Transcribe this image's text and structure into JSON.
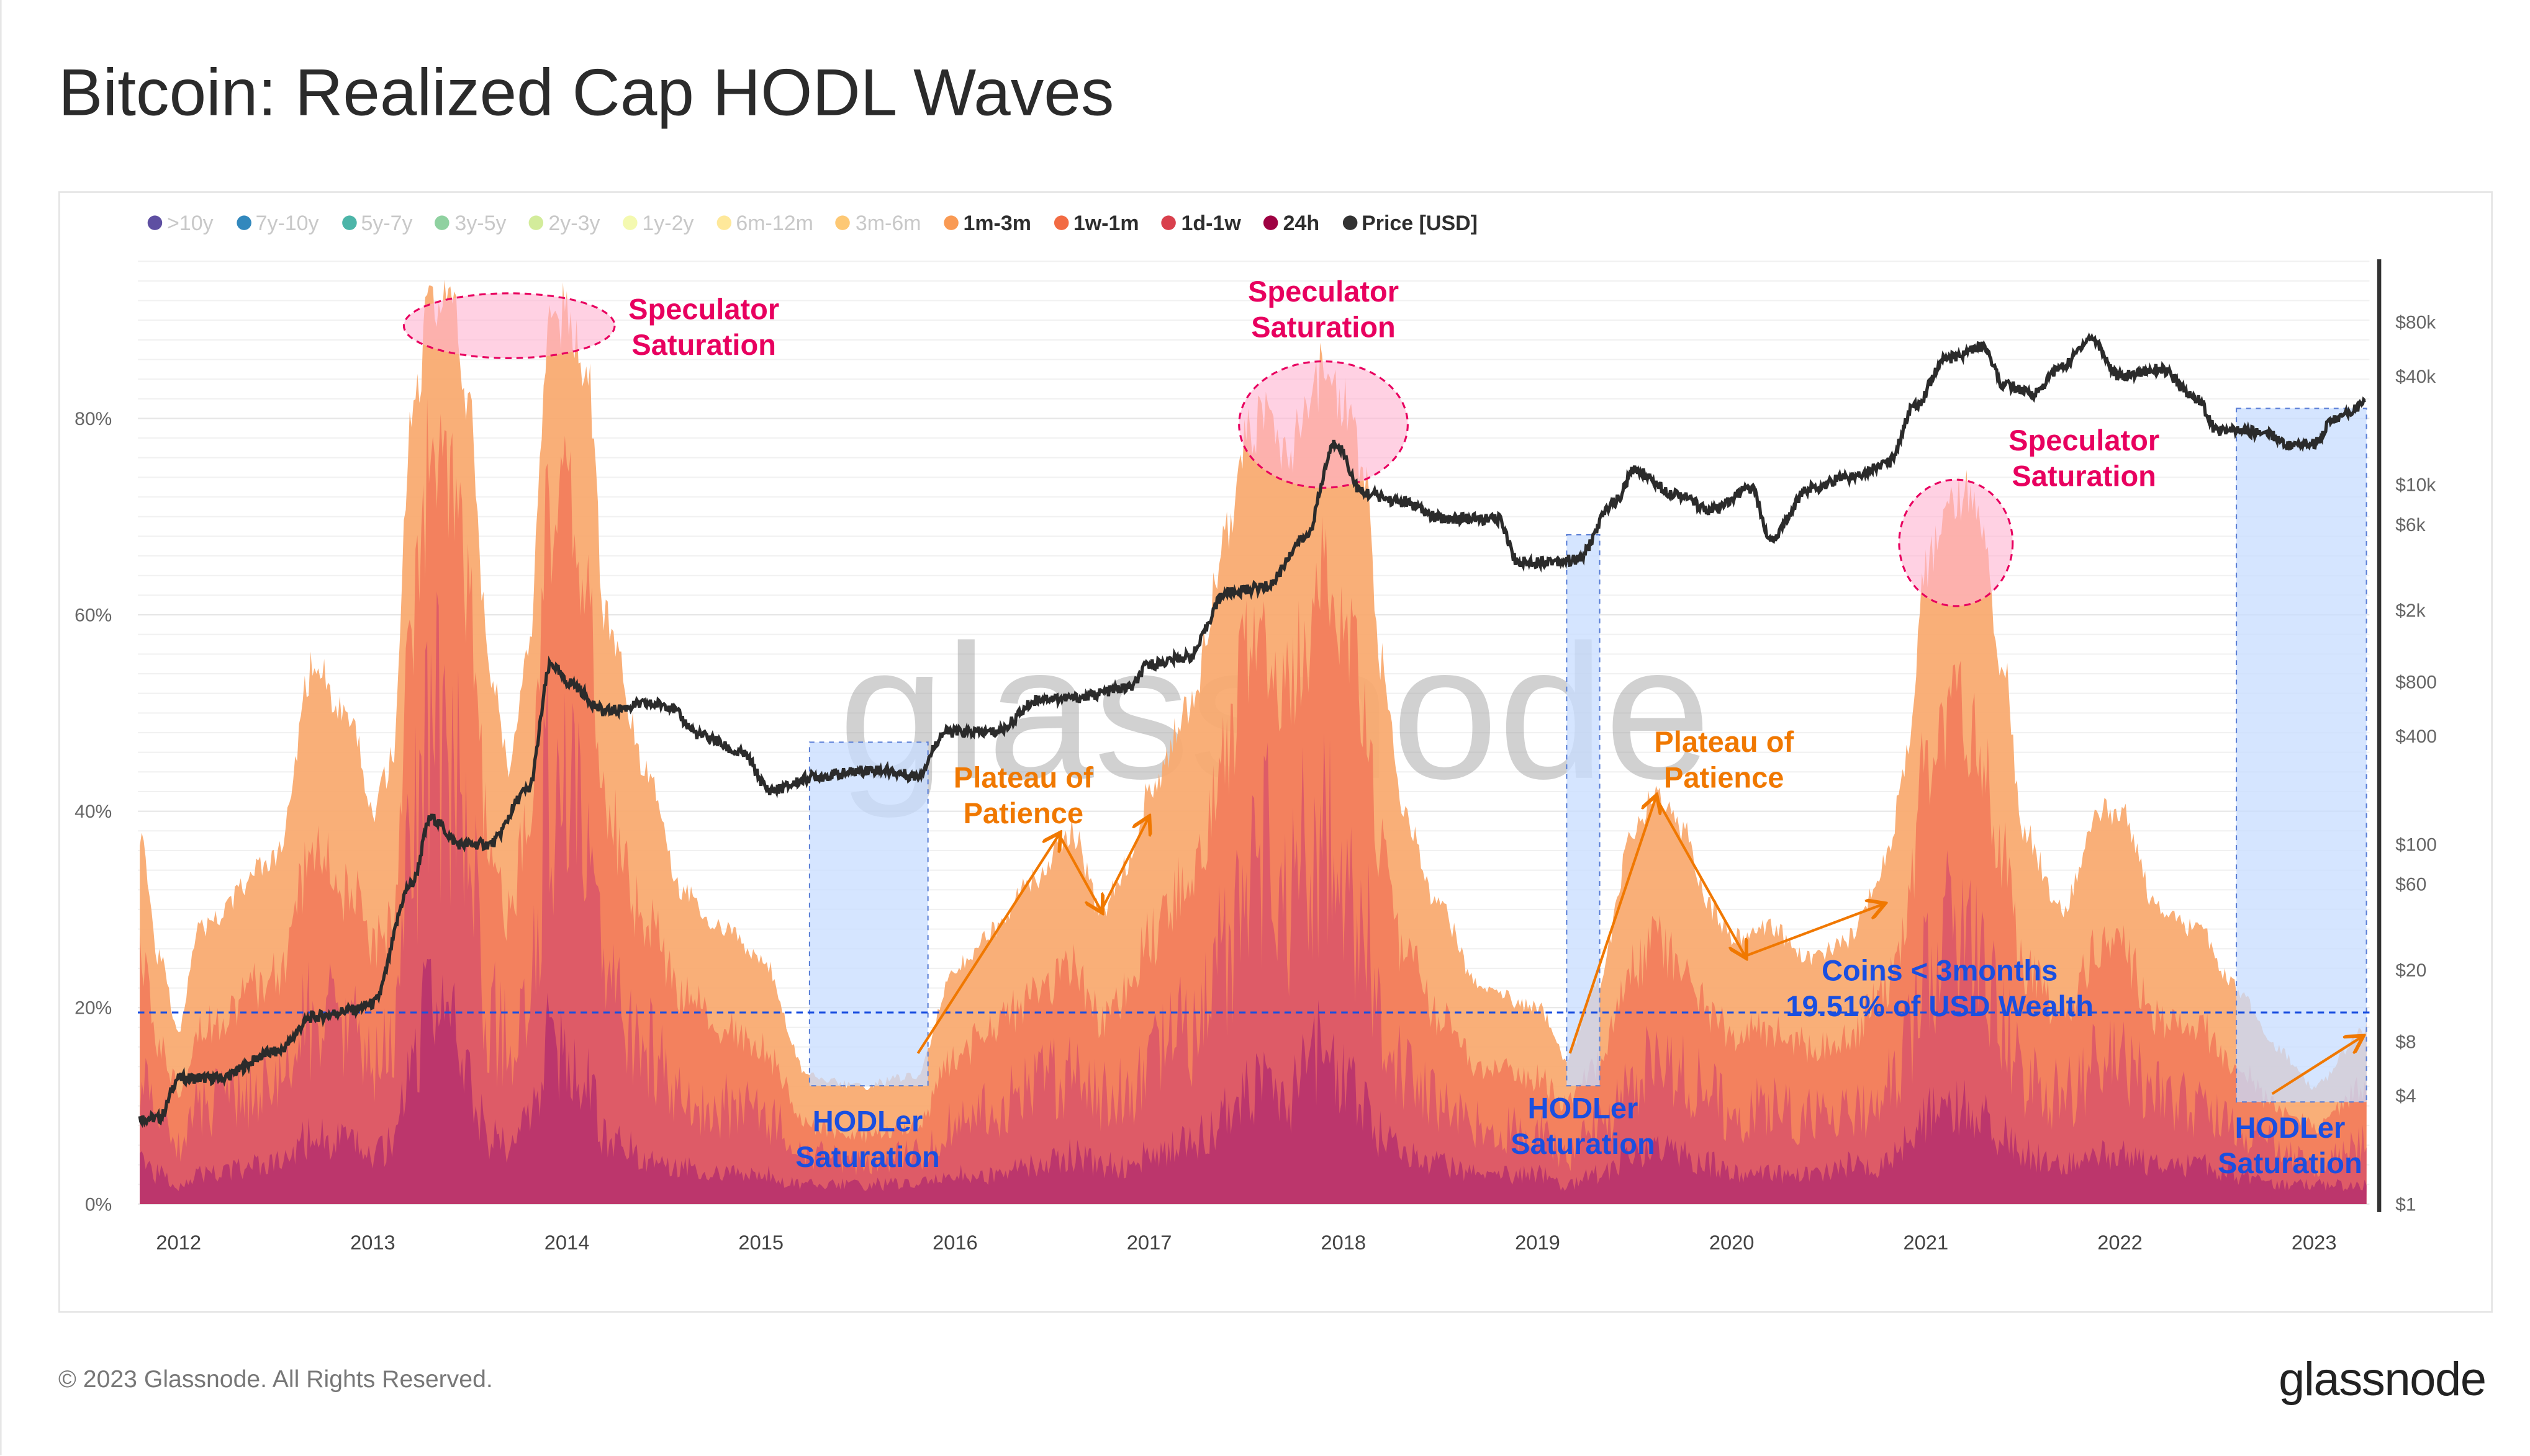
{
  "title": "Bitcoin: Realized Cap HODL Waves",
  "legend": [
    {
      "label": ">10y",
      "color": "#5e4fa2",
      "active": false
    },
    {
      "label": "7y-10y",
      "color": "#3288bd",
      "active": false
    },
    {
      "label": "5y-7y",
      "color": "#4cb5a8",
      "active": false
    },
    {
      "label": "3y-5y",
      "color": "#8fd1a0",
      "active": false
    },
    {
      "label": "2y-3y",
      "color": "#d3ec9b",
      "active": false
    },
    {
      "label": "1y-2y",
      "color": "#f4f9b0",
      "active": false
    },
    {
      "label": "6m-12m",
      "color": "#fee89a",
      "active": false
    },
    {
      "label": "3m-6m",
      "color": "#fdc874",
      "active": false
    },
    {
      "label": "1m-3m",
      "color": "#f99a54",
      "active": true
    },
    {
      "label": "1w-1m",
      "color": "#f26b43",
      "active": true
    },
    {
      "label": "1d-1w",
      "color": "#d9404d",
      "active": true
    },
    {
      "label": "24h",
      "color": "#9e0142",
      "active": true
    },
    {
      "label": "Price [USD]",
      "color": "#333333",
      "active": true
    }
  ],
  "footer": "© 2023 Glassnode. All Rights Reserved.",
  "logo": "glassnode",
  "watermark": "glassnode",
  "annotations": {
    "spec1": [
      "Speculator",
      "Saturation"
    ],
    "spec2": [
      "Speculator",
      "Saturation"
    ],
    "spec3": [
      "Speculator",
      "Saturation"
    ],
    "hodl1": [
      "HODLer",
      "Saturation"
    ],
    "hodl2": [
      "HODLer",
      "Saturation"
    ],
    "hodl3": [
      "HODLer",
      "Saturation"
    ],
    "plat1": [
      "Plateau of",
      "Patience"
    ],
    "plat2": [
      "Plateau of",
      "Patience"
    ],
    "coins": [
      "Coins < 3months",
      "19.51% of USD Wealth"
    ]
  },
  "chart_data": {
    "type": "area",
    "title": "Bitcoin: Realized Cap HODL Waves",
    "x_ticks": [
      "2012",
      "2013",
      "2014",
      "2015",
      "2016",
      "2017",
      "2018",
      "2019",
      "2020",
      "2021",
      "2022",
      "2023"
    ],
    "y_left_ticks": [
      "0%",
      "20%",
      "40%",
      "60%",
      "80%"
    ],
    "y_right_ticks": [
      "$1",
      "$4",
      "$8",
      "$20",
      "$60",
      "$100",
      "$400",
      "$800",
      "$2k",
      "$6k",
      "$10k",
      "$40k",
      "$80k"
    ],
    "y_right_values": [
      1,
      4,
      8,
      20,
      60,
      100,
      400,
      800,
      2000,
      6000,
      10000,
      40000,
      80000
    ],
    "y_right_scale": "log",
    "ylim_left": [
      0,
      96
    ],
    "grid": true,
    "legend_position": "top",
    "reference_line_pct": 19.51,
    "x": [
      2011.8,
      2011.9,
      2012.0,
      2012.1,
      2012.5,
      2012.7,
      2012.9,
      2013.0,
      2013.1,
      2013.2,
      2013.3,
      2013.4,
      2013.5,
      2013.6,
      2013.7,
      2013.8,
      2013.9,
      2014.0,
      2014.1,
      2014.2,
      2014.4,
      2014.6,
      2014.8,
      2015.0,
      2015.25,
      2015.5,
      2015.8,
      2016.0,
      2016.2,
      2016.4,
      2016.6,
      2016.75,
      2016.9,
      2017.0,
      2017.2,
      2017.4,
      2017.5,
      2017.6,
      2017.7,
      2017.8,
      2017.9,
      2018.0,
      2018.1,
      2018.2,
      2018.3,
      2018.5,
      2018.7,
      2019.0,
      2019.15,
      2019.3,
      2019.5,
      2019.6,
      2019.75,
      2019.9,
      2020.0,
      2020.2,
      2020.4,
      2020.6,
      2020.8,
      2020.9,
      2021.0,
      2021.15,
      2021.25,
      2021.4,
      2021.5,
      2021.7,
      2021.9,
      2022.0,
      2022.2,
      2022.4,
      2022.6,
      2022.8,
      2023.0,
      2023.27
    ],
    "series": [
      {
        "name": "1m-3m",
        "color": "#f9a86c",
        "values": [
          38,
          25,
          18,
          28,
          35,
          55,
          48,
          40,
          45,
          80,
          92,
          92,
          80,
          55,
          45,
          55,
          88,
          91,
          85,
          60,
          45,
          32,
          28,
          25,
          13,
          12,
          13,
          24,
          28,
          33,
          38,
          30,
          35,
          42,
          50,
          68,
          78,
          80,
          76,
          80,
          85,
          82,
          75,
          55,
          40,
          30,
          22,
          20,
          15,
          22,
          38,
          42,
          38,
          30,
          27,
          28,
          25,
          27,
          35,
          45,
          65,
          72,
          72,
          55,
          38,
          30,
          40,
          40,
          30,
          28,
          22,
          16,
          12,
          18
        ]
      },
      {
        "name": "1w-1m",
        "color": "#f27d5c",
        "values": [
          25,
          16,
          12,
          18,
          23,
          36,
          31,
          26,
          29,
          60,
          75,
          72,
          60,
          36,
          29,
          38,
          70,
          72,
          62,
          40,
          29,
          21,
          18,
          16,
          8,
          7,
          8,
          15,
          18,
          21,
          24,
          19,
          22,
          27,
          33,
          46,
          55,
          58,
          52,
          58,
          64,
          60,
          52,
          36,
          26,
          19,
          14,
          13,
          10,
          14,
          24,
          27,
          24,
          19,
          17,
          18,
          16,
          17,
          22,
          29,
          45,
          50,
          48,
          36,
          24,
          19,
          26,
          26,
          19,
          18,
          14,
          10,
          8,
          12
        ]
      },
      {
        "name": "1d-1w",
        "color": "#dc5868",
        "values": [
          13,
          9,
          6,
          10,
          12,
          19,
          17,
          14,
          16,
          35,
          48,
          45,
          35,
          19,
          16,
          19,
          40,
          40,
          35,
          21,
          16,
          11,
          10,
          9,
          5,
          4,
          5,
          8,
          10,
          12,
          13,
          11,
          12,
          15,
          18,
          26,
          32,
          35,
          30,
          35,
          38,
          34,
          28,
          19,
          14,
          11,
          8,
          7,
          5,
          8,
          13,
          15,
          13,
          11,
          9,
          10,
          9,
          9,
          12,
          16,
          24,
          28,
          26,
          19,
          13,
          11,
          14,
          14,
          11,
          10,
          8,
          6,
          4,
          6
        ]
      },
      {
        "name": "24h",
        "color": "#b8336c",
        "values": [
          5,
          3,
          2,
          3,
          4,
          7,
          6,
          5,
          6,
          14,
          22,
          18,
          12,
          7,
          6,
          8,
          16,
          15,
          12,
          7,
          5,
          4,
          3,
          3,
          2,
          2,
          2,
          3,
          3,
          4,
          5,
          4,
          4,
          5,
          6,
          9,
          11,
          12,
          10,
          14,
          16,
          13,
          10,
          7,
          5,
          4,
          3,
          3,
          2,
          3,
          5,
          6,
          5,
          4,
          3,
          3,
          3,
          4,
          4,
          6,
          9,
          10,
          9,
          7,
          5,
          4,
          5,
          5,
          4,
          4,
          3,
          2,
          2,
          2
        ]
      }
    ],
    "price": {
      "name": "Price [USD]",
      "color": "#2b2b2b",
      "x": [
        2011.8,
        2011.9,
        2012.0,
        2012.2,
        2012.5,
        2012.7,
        2012.9,
        2013.0,
        2013.2,
        2013.3,
        2013.45,
        2013.6,
        2013.8,
        2013.92,
        2014.0,
        2014.2,
        2014.4,
        2014.5,
        2014.7,
        2014.9,
        2015.05,
        2015.3,
        2015.6,
        2015.8,
        2015.95,
        2016.2,
        2016.45,
        2016.6,
        2016.9,
        2017.0,
        2017.2,
        2017.4,
        2017.6,
        2017.8,
        2017.96,
        2018.1,
        2018.3,
        2018.5,
        2018.8,
        2018.9,
        2019.2,
        2019.4,
        2019.5,
        2019.7,
        2019.9,
        2020.1,
        2020.2,
        2020.4,
        2020.6,
        2020.8,
        2020.95,
        2021.1,
        2021.3,
        2021.4,
        2021.55,
        2021.7,
        2021.85,
        2022.0,
        2022.2,
        2022.4,
        2022.5,
        2022.75,
        2022.88,
        2023.0,
        2023.1,
        2023.27
      ],
      "values": [
        3,
        3,
        5,
        5,
        7,
        11,
        12,
        13,
        60,
        140,
        100,
        100,
        200,
        1000,
        800,
        550,
        600,
        600,
        400,
        320,
        200,
        240,
        260,
        240,
        420,
        420,
        650,
        650,
        740,
        1000,
        1100,
        2500,
        2700,
        5000,
        17000,
        9000,
        8000,
        6500,
        6400,
        3700,
        3800,
        8000,
        12000,
        9000,
        7200,
        9500,
        5000,
        9500,
        11000,
        13000,
        28000,
        50000,
        58000,
        36000,
        32000,
        45000,
        65000,
        40000,
        44000,
        30000,
        20000,
        19500,
        16500,
        17000,
        23000,
        28000
      ]
    }
  }
}
